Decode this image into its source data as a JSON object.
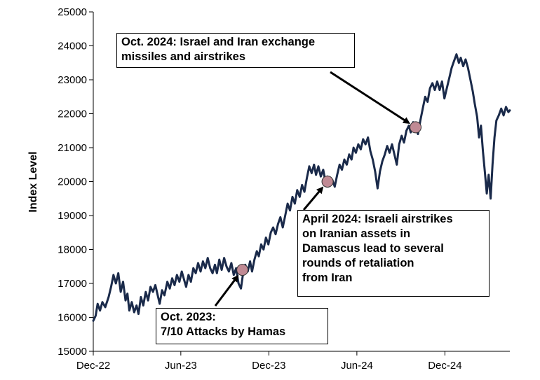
{
  "chart_data": {
    "type": "line",
    "title": "",
    "xlabel": "",
    "ylabel": "Index Level",
    "ylim": [
      15000,
      25000
    ],
    "yticks": [
      15000,
      16000,
      17000,
      18000,
      19000,
      20000,
      21000,
      22000,
      23000,
      24000,
      25000
    ],
    "x_range": [
      "2022-12-01",
      "2025-04-15"
    ],
    "xticks": [
      {
        "date": "2022-12-01",
        "label": "Dec-22"
      },
      {
        "date": "2023-06-01",
        "label": "Jun-23"
      },
      {
        "date": "2023-12-01",
        "label": "Dec-23"
      },
      {
        "date": "2024-06-01",
        "label": "Jun-24"
      },
      {
        "date": "2024-12-01",
        "label": "Dec-24"
      }
    ],
    "grid": false,
    "series": [
      {
        "color": "#1a2a4a",
        "points": [
          [
            "2022-12-01",
            15900
          ],
          [
            "2022-12-06",
            16050
          ],
          [
            "2022-12-10",
            16400
          ],
          [
            "2022-12-15",
            16200
          ],
          [
            "2022-12-20",
            16450
          ],
          [
            "2022-12-26",
            16300
          ],
          [
            "2023-01-02",
            16600
          ],
          [
            "2023-01-07",
            16900
          ],
          [
            "2023-01-12",
            17250
          ],
          [
            "2023-01-17",
            17000
          ],
          [
            "2023-01-22",
            17300
          ],
          [
            "2023-01-27",
            16750
          ],
          [
            "2023-02-01",
            17050
          ],
          [
            "2023-02-06",
            16500
          ],
          [
            "2023-02-10",
            16700
          ],
          [
            "2023-02-14",
            16200
          ],
          [
            "2023-02-19",
            16450
          ],
          [
            "2023-02-24",
            16150
          ],
          [
            "2023-03-01",
            16350
          ],
          [
            "2023-03-05",
            16100
          ],
          [
            "2023-03-10",
            16600
          ],
          [
            "2023-03-15",
            16350
          ],
          [
            "2023-03-20",
            16750
          ],
          [
            "2023-03-25",
            16500
          ],
          [
            "2023-03-30",
            16900
          ],
          [
            "2023-04-04",
            16750
          ],
          [
            "2023-04-09",
            16950
          ],
          [
            "2023-04-14",
            16650
          ],
          [
            "2023-04-18",
            16400
          ],
          [
            "2023-04-23",
            16800
          ],
          [
            "2023-04-28",
            16650
          ],
          [
            "2023-05-04",
            17050
          ],
          [
            "2023-05-09",
            16850
          ],
          [
            "2023-05-14",
            17150
          ],
          [
            "2023-05-19",
            16950
          ],
          [
            "2023-05-24",
            17250
          ],
          [
            "2023-05-29",
            17050
          ],
          [
            "2023-06-03",
            17350
          ],
          [
            "2023-06-08",
            17100
          ],
          [
            "2023-06-12",
            16900
          ],
          [
            "2023-06-17",
            17250
          ],
          [
            "2023-06-22",
            17050
          ],
          [
            "2023-06-27",
            17450
          ],
          [
            "2023-07-02",
            17300
          ],
          [
            "2023-07-07",
            17600
          ],
          [
            "2023-07-12",
            17350
          ],
          [
            "2023-07-17",
            17650
          ],
          [
            "2023-07-22",
            17450
          ],
          [
            "2023-07-27",
            17750
          ],
          [
            "2023-08-01",
            17450
          ],
          [
            "2023-08-06",
            17300
          ],
          [
            "2023-08-11",
            17550
          ],
          [
            "2023-08-15",
            17300
          ],
          [
            "2023-08-20",
            17700
          ],
          [
            "2023-08-25",
            17400
          ],
          [
            "2023-08-30",
            17750
          ],
          [
            "2023-09-04",
            17500
          ],
          [
            "2023-09-09",
            17350
          ],
          [
            "2023-09-14",
            17600
          ],
          [
            "2023-09-19",
            17250
          ],
          [
            "2023-09-24",
            17450
          ],
          [
            "2023-09-29",
            17000
          ],
          [
            "2023-10-04",
            16850
          ],
          [
            "2023-10-08",
            17250
          ],
          [
            "2023-10-13",
            17550
          ],
          [
            "2023-10-18",
            17350
          ],
          [
            "2023-10-23",
            17650
          ],
          [
            "2023-10-27",
            17350
          ],
          [
            "2023-11-01",
            17700
          ],
          [
            "2023-11-06",
            17950
          ],
          [
            "2023-11-10",
            17800
          ],
          [
            "2023-11-15",
            18150
          ],
          [
            "2023-11-20",
            18000
          ],
          [
            "2023-11-25",
            18350
          ],
          [
            "2023-11-30",
            18150
          ],
          [
            "2023-12-05",
            18500
          ],
          [
            "2023-12-10",
            18650
          ],
          [
            "2023-12-15",
            18450
          ],
          [
            "2023-12-20",
            18750
          ],
          [
            "2023-12-25",
            18950
          ],
          [
            "2023-12-30",
            18650
          ],
          [
            "2024-01-04",
            19000
          ],
          [
            "2024-01-09",
            19350
          ],
          [
            "2024-01-14",
            19150
          ],
          [
            "2024-01-19",
            19550
          ],
          [
            "2024-01-24",
            19350
          ],
          [
            "2024-01-29",
            19750
          ],
          [
            "2024-02-03",
            19550
          ],
          [
            "2024-02-08",
            19900
          ],
          [
            "2024-02-13",
            19700
          ],
          [
            "2024-02-18",
            20100
          ],
          [
            "2024-02-23",
            20450
          ],
          [
            "2024-02-28",
            20250
          ],
          [
            "2024-03-04",
            20500
          ],
          [
            "2024-03-08",
            20200
          ],
          [
            "2024-03-13",
            20450
          ],
          [
            "2024-03-18",
            20150
          ],
          [
            "2024-03-23",
            20350
          ],
          [
            "2024-03-27",
            20050
          ],
          [
            "2024-04-01",
            20150
          ],
          [
            "2024-04-06",
            19950
          ],
          [
            "2024-04-11",
            20050
          ],
          [
            "2024-04-16",
            19850
          ],
          [
            "2024-04-21",
            20200
          ],
          [
            "2024-04-26",
            20500
          ],
          [
            "2024-05-01",
            20350
          ],
          [
            "2024-05-06",
            20650
          ],
          [
            "2024-05-11",
            20500
          ],
          [
            "2024-05-16",
            20800
          ],
          [
            "2024-05-21",
            20650
          ],
          [
            "2024-05-25",
            21000
          ],
          [
            "2024-05-30",
            20850
          ],
          [
            "2024-06-04",
            21100
          ],
          [
            "2024-06-09",
            20950
          ],
          [
            "2024-06-14",
            21250
          ],
          [
            "2024-06-19",
            21100
          ],
          [
            "2024-06-24",
            21300
          ],
          [
            "2024-06-29",
            20900
          ],
          [
            "2024-07-04",
            20650
          ],
          [
            "2024-07-09",
            20300
          ],
          [
            "2024-07-14",
            19800
          ],
          [
            "2024-07-19",
            20300
          ],
          [
            "2024-07-24",
            20600
          ],
          [
            "2024-07-29",
            20800
          ],
          [
            "2024-08-03",
            21050
          ],
          [
            "2024-08-08",
            20850
          ],
          [
            "2024-08-13",
            21100
          ],
          [
            "2024-08-18",
            20800
          ],
          [
            "2024-08-23",
            20500
          ],
          [
            "2024-08-28",
            21100
          ],
          [
            "2024-09-02",
            21350
          ],
          [
            "2024-09-07",
            21150
          ],
          [
            "2024-09-12",
            21500
          ],
          [
            "2024-09-17",
            21650
          ],
          [
            "2024-09-21",
            21450
          ],
          [
            "2024-09-26",
            21750
          ],
          [
            "2024-10-01",
            21650
          ],
          [
            "2024-10-06",
            21400
          ],
          [
            "2024-10-11",
            21800
          ],
          [
            "2024-10-16",
            22150
          ],
          [
            "2024-10-21",
            22500
          ],
          [
            "2024-10-26",
            22350
          ],
          [
            "2024-10-31",
            22750
          ],
          [
            "2024-11-05",
            22900
          ],
          [
            "2024-11-10",
            22700
          ],
          [
            "2024-11-15",
            22950
          ],
          [
            "2024-11-20",
            22700
          ],
          [
            "2024-11-25",
            22950
          ],
          [
            "2024-11-30",
            22450
          ],
          [
            "2024-12-05",
            22750
          ],
          [
            "2024-12-10",
            23050
          ],
          [
            "2024-12-15",
            23350
          ],
          [
            "2024-12-20",
            23550
          ],
          [
            "2024-12-25",
            23750
          ],
          [
            "2024-12-30",
            23500
          ],
          [
            "2025-01-03",
            23650
          ],
          [
            "2025-01-08",
            23400
          ],
          [
            "2025-01-13",
            23600
          ],
          [
            "2025-01-18",
            23350
          ],
          [
            "2025-01-23",
            23000
          ],
          [
            "2025-01-28",
            22650
          ],
          [
            "2025-02-01",
            22300
          ],
          [
            "2025-02-06",
            21900
          ],
          [
            "2025-02-10",
            21300
          ],
          [
            "2025-02-14",
            21650
          ],
          [
            "2025-02-18",
            20900
          ],
          [
            "2025-02-22",
            20300
          ],
          [
            "2025-02-26",
            19650
          ],
          [
            "2025-03-02",
            20200
          ],
          [
            "2025-03-06",
            19500
          ],
          [
            "2025-03-10",
            20500
          ],
          [
            "2025-03-14",
            21300
          ],
          [
            "2025-03-18",
            21800
          ],
          [
            "2025-03-23",
            21950
          ],
          [
            "2025-03-28",
            22150
          ],
          [
            "2025-04-02",
            21950
          ],
          [
            "2025-04-07",
            22200
          ],
          [
            "2025-04-12",
            22050
          ],
          [
            "2025-04-15",
            22100
          ]
        ]
      }
    ],
    "annotations": [
      {
        "lines": [
          "Oct. 2024: Israel and Iran exchange",
          "missiles and airstrikes"
        ],
        "marker": {
          "date": "2024-10-01",
          "value": 21600
        }
      },
      {
        "lines": [
          "April 2024: Israeli airstrikes",
          "on Iranian assets in",
          "Damascus lead to several",
          "rounds of retaliation",
          "from Iran"
        ],
        "marker": {
          "date": "2024-04-01",
          "value": 20000
        }
      },
      {
        "lines": [
          "Oct. 2023:",
          "7/10 Attacks by Hamas"
        ],
        "marker": {
          "date": "2023-10-07",
          "value": 17400
        }
      }
    ],
    "marker_color": "#c08a94"
  }
}
